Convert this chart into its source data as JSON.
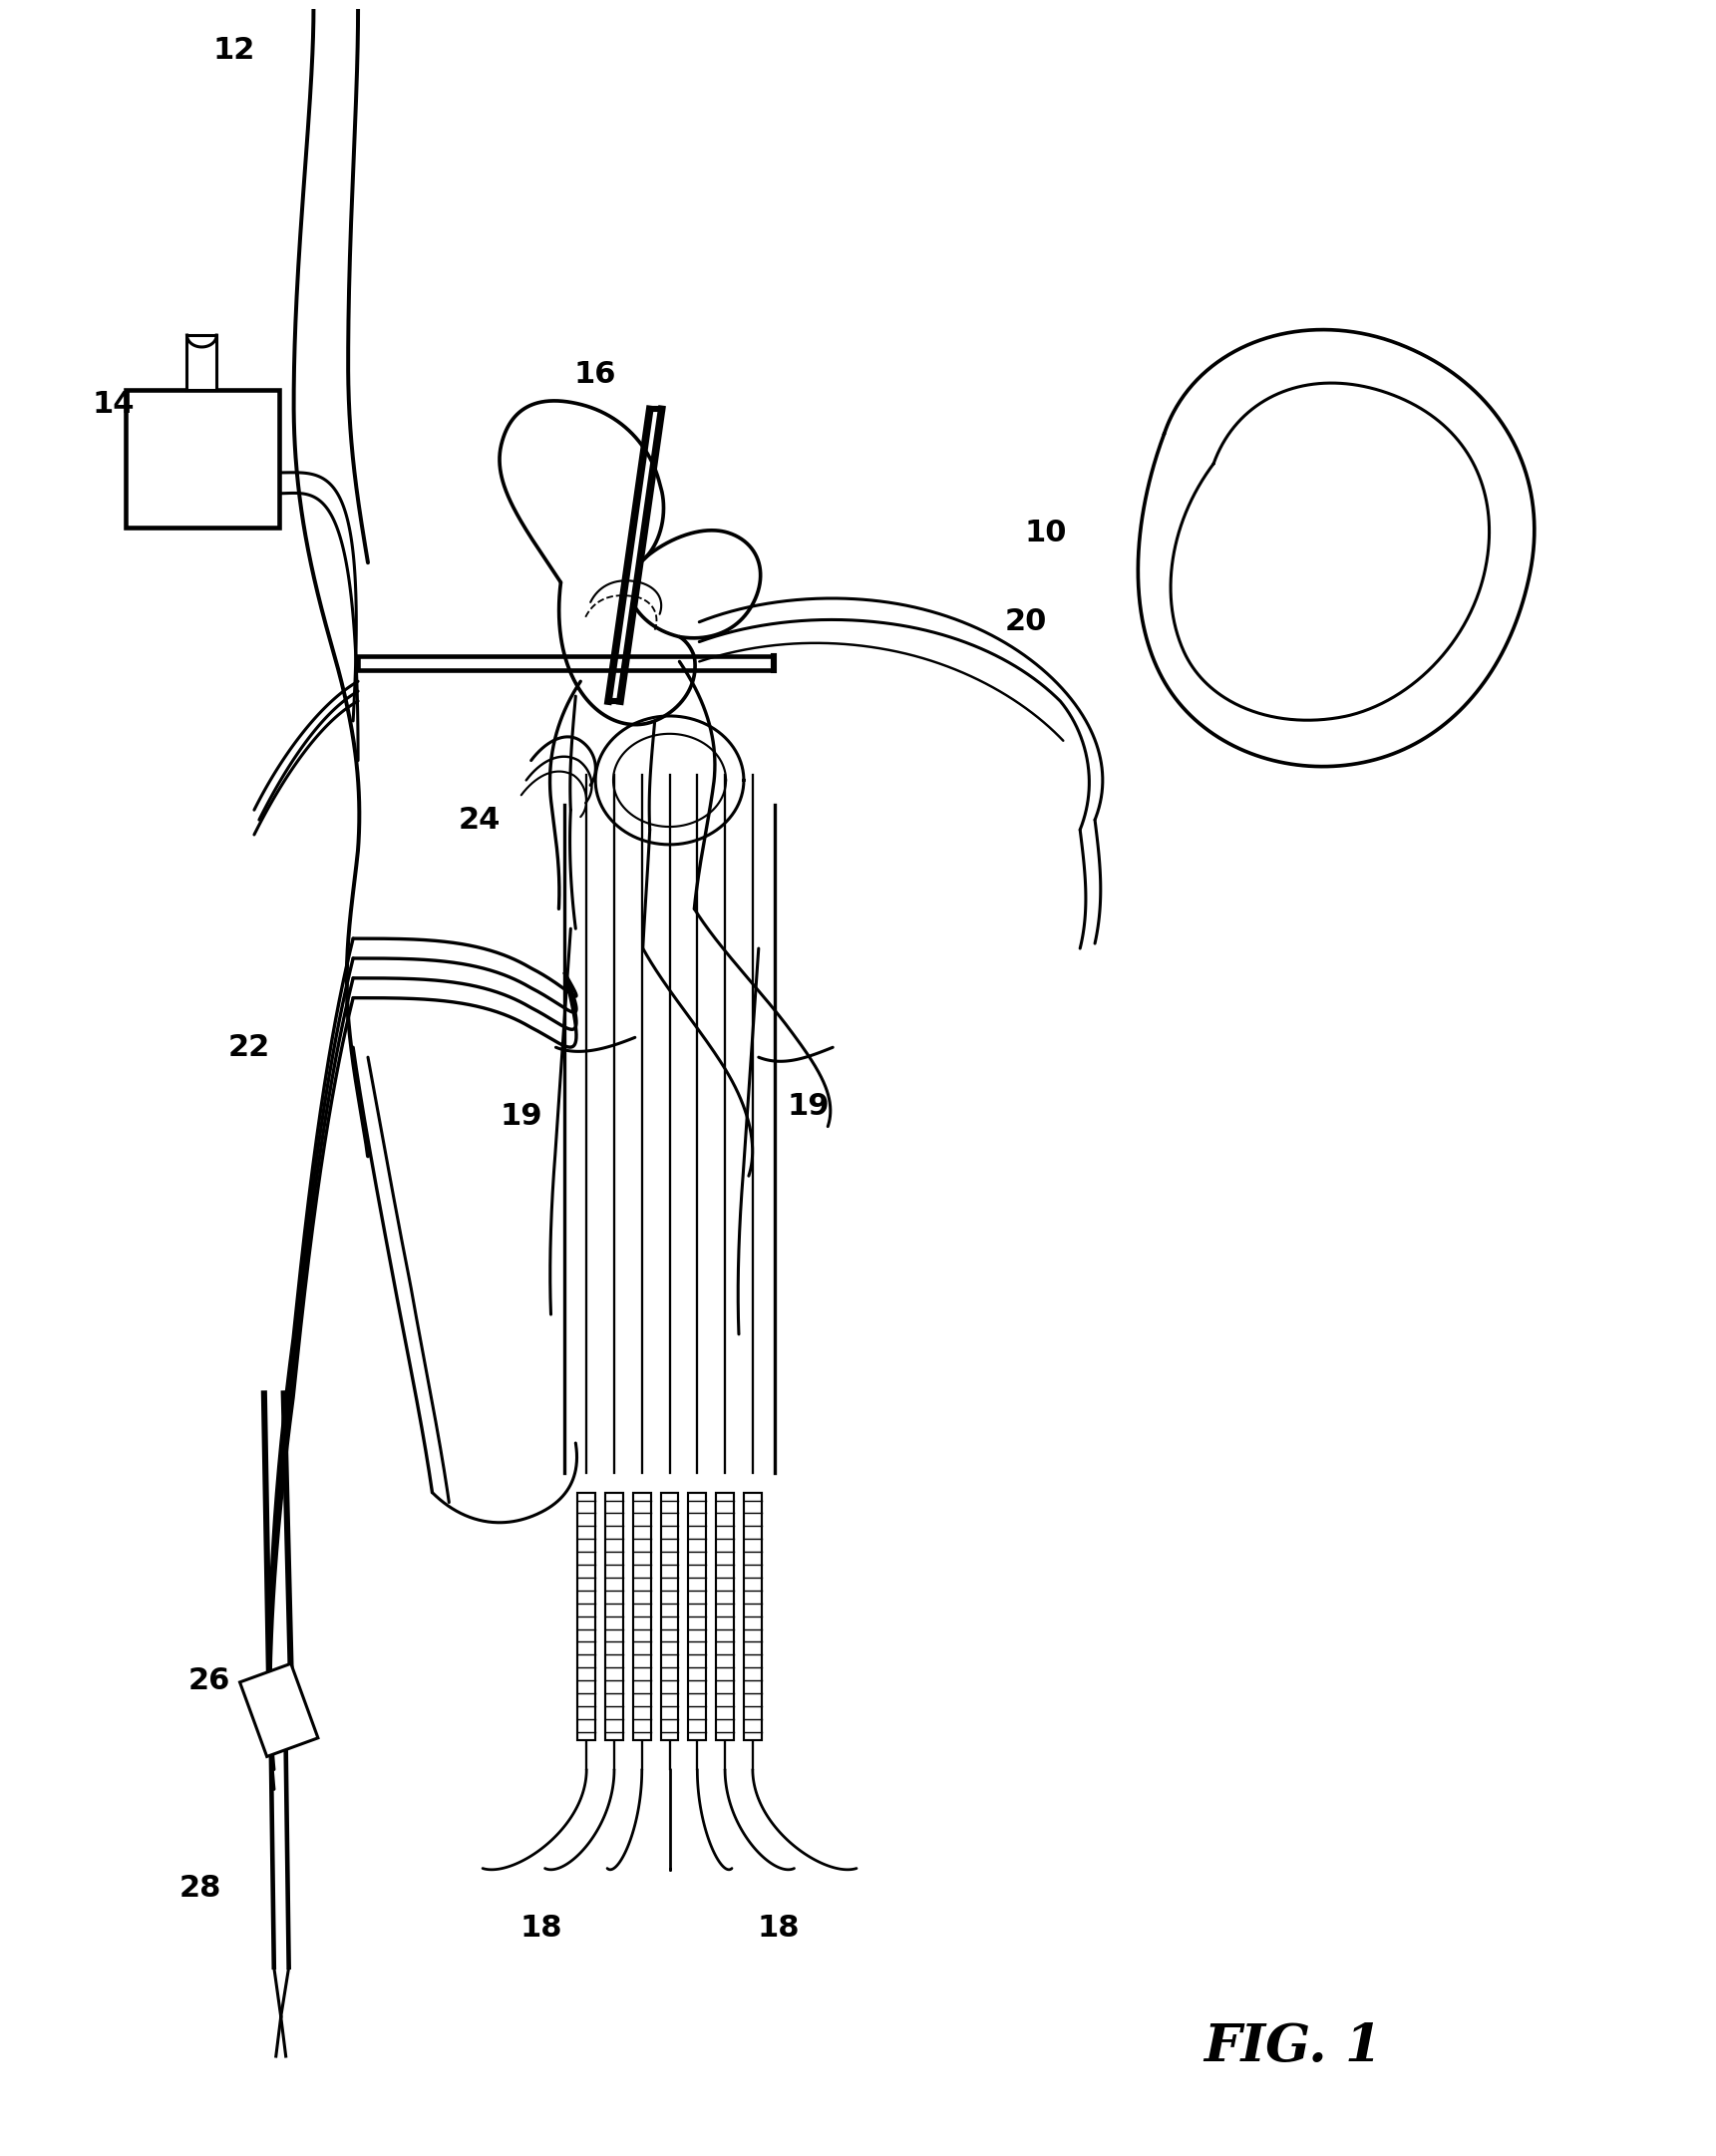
{
  "title": "FIG. 1",
  "background_color": "#ffffff",
  "line_color": "#000000",
  "line_width": 2.2,
  "fig_label_fontsize": 38,
  "ref_label_fontsize": 22
}
